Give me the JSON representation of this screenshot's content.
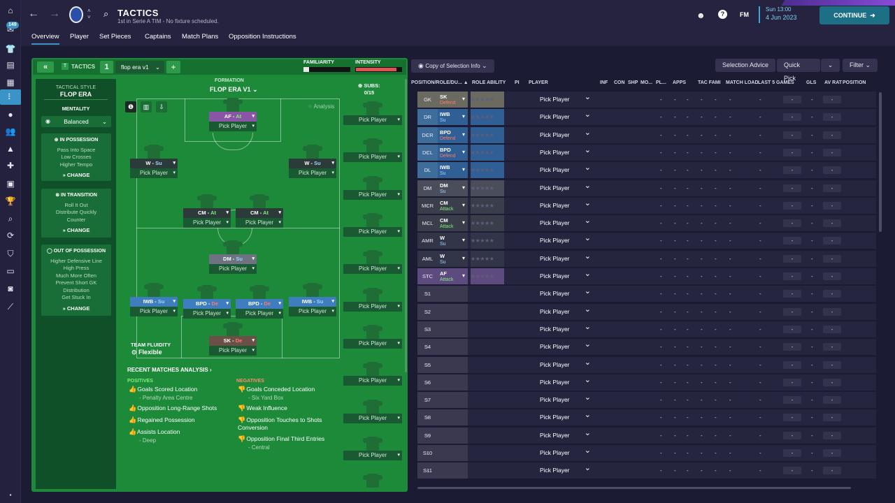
{
  "header": {
    "title": "TACTICS",
    "subtitle": "1st in Serie A TIM - No fixture scheduled.",
    "fm": "FM",
    "day_time": "Sun 13:00",
    "date": "4 Jun 2023",
    "continue": "CONTINUE",
    "inbox_count": "149"
  },
  "tabs": [
    "Overview",
    "Player",
    "Set Pieces",
    "Captains",
    "Match Plans",
    "Opposition Instructions"
  ],
  "tactics_bar": {
    "label": "TACTICS",
    "slot": "1",
    "name": "flop era v1",
    "familiarity": "FAMILIARITY",
    "intensity": "INTENSITY"
  },
  "left_panel": {
    "style_label": "TACTICAL STYLE",
    "style_value": "FLOP ERA",
    "mentality_label": "MENTALITY",
    "mentality_value": "Balanced",
    "possession": {
      "title": "IN POSSESSION",
      "items": [
        "Pass Into Space",
        "Low Crosses",
        "Higher Tempo"
      ],
      "change": "CHANGE"
    },
    "transition": {
      "title": "IN TRANSITION",
      "items": [
        "Roll It Out",
        "Distribute Quickly",
        "Counter"
      ],
      "change": "CHANGE"
    },
    "out": {
      "title": "OUT OF POSSESSION",
      "items": [
        "Higher Defensive Line",
        "High Press",
        "Much More Often",
        "Prevent Short GK",
        "Distribution",
        "Get Stuck In"
      ],
      "change": "CHANGE"
    }
  },
  "formation": {
    "label": "FORMATION",
    "name": "FLOP ERA V1",
    "subs_label": "SUBS:",
    "subs_count": "0/15",
    "analysis": "Analysis",
    "fluidity_label": "TEAM FLUIDITY",
    "fluidity_value": "Flexible",
    "pick": "Pick Player"
  },
  "pitch_slots": [
    {
      "role": "AF",
      "duty": "At",
      "duty_class": "at",
      "role_class": "r-purple"
    },
    {
      "role": "W",
      "duty": "Su",
      "duty_class": "su",
      "role_class": "r-dark"
    },
    {
      "role": "W",
      "duty": "Su",
      "duty_class": "su",
      "role_class": "r-dark"
    },
    {
      "role": "CM",
      "duty": "At",
      "duty_class": "at",
      "role_class": "r-dark"
    },
    {
      "role": "CM",
      "duty": "At",
      "duty_class": "at",
      "role_class": "r-dark"
    },
    {
      "role": "DM",
      "duty": "Su",
      "duty_class": "su",
      "role_class": "r-gray"
    },
    {
      "role": "IWB",
      "duty": "Su",
      "duty_class": "su",
      "role_class": "r-blue"
    },
    {
      "role": "BPD",
      "duty": "De",
      "duty_class": "de",
      "role_class": "r-blue"
    },
    {
      "role": "BPD",
      "duty": "De",
      "duty_class": "de",
      "role_class": "r-blue"
    },
    {
      "role": "IWB",
      "duty": "Su",
      "duty_class": "su",
      "role_class": "r-blue"
    },
    {
      "role": "SK",
      "duty": "De",
      "duty_class": "de",
      "role_class": "r-brown"
    }
  ],
  "analysis": {
    "title": "RECENT MATCHES ANALYSIS",
    "positives_label": "POSITIVES",
    "negatives_label": "NEGATIVES",
    "positives": [
      {
        "text": "Goals Scored Location",
        "sub": "- Penalty Area Centre"
      },
      {
        "text": "Opposition Long-Range Shots",
        "sub": ""
      },
      {
        "text": "Regained Possession",
        "sub": ""
      },
      {
        "text": "Assists Location",
        "sub": "- Deep"
      }
    ],
    "negatives": [
      {
        "text": "Goals Conceded Location",
        "sub": "- Six Yard Box"
      },
      {
        "text": "Weak Influence",
        "sub": ""
      },
      {
        "text": "Opposition Touches to Shots Conversion",
        "sub": ""
      },
      {
        "text": "Opposition Final Third Entries",
        "sub": "- Central"
      }
    ]
  },
  "toolbar": {
    "copy": "Copy of Selection Info",
    "advice": "Selection Advice",
    "quick": "Quick Pick",
    "filter": "Filter"
  },
  "columns": [
    "POSITION/ROLE/DU...",
    "ROLE ABILITY",
    "PI",
    "PLAYER",
    "INF",
    "CON",
    "SHP",
    "MO...",
    "PL...",
    "APPS",
    "TAC FAMI",
    "MATCH LOAD",
    "LAST 5 GAMES",
    "GLS",
    "AV RAT",
    "POSITION"
  ],
  "rows": [
    {
      "pos": "GK",
      "role": "SK",
      "duty": "Defend",
      "cls": "c-gk",
      "dcls": "de"
    },
    {
      "pos": "DR",
      "role": "IWB",
      "duty": "Su",
      "cls": "c-def",
      "dcls": "su"
    },
    {
      "pos": "DCR",
      "role": "BPD",
      "duty": "Defend",
      "cls": "c-def",
      "dcls": "de"
    },
    {
      "pos": "DCL",
      "role": "BPD",
      "duty": "Defend",
      "cls": "c-def",
      "dcls": "de"
    },
    {
      "pos": "DL",
      "role": "IWB",
      "duty": "Su",
      "cls": "c-def",
      "dcls": "su"
    },
    {
      "pos": "DM",
      "role": "DM",
      "duty": "Su",
      "cls": "c-dm",
      "dcls": "su"
    },
    {
      "pos": "MCR",
      "role": "CM",
      "duty": "Attack",
      "cls": "c-mid",
      "dcls": "at"
    },
    {
      "pos": "MCL",
      "role": "CM",
      "duty": "Attack",
      "cls": "c-mid",
      "dcls": "at"
    },
    {
      "pos": "AMR",
      "role": "W",
      "duty": "Su",
      "cls": "c-w",
      "dcls": "su"
    },
    {
      "pos": "AML",
      "role": "W",
      "duty": "Su",
      "cls": "c-w",
      "dcls": "su"
    },
    {
      "pos": "STC",
      "role": "AF",
      "duty": "Attack",
      "cls": "c-st",
      "dcls": "at"
    },
    {
      "pos": "S1",
      "role": "",
      "duty": "",
      "cls": "c-sub",
      "dcls": ""
    },
    {
      "pos": "S2",
      "role": "",
      "duty": "",
      "cls": "c-sub",
      "dcls": ""
    },
    {
      "pos": "S3",
      "role": "",
      "duty": "",
      "cls": "c-sub",
      "dcls": ""
    },
    {
      "pos": "S4",
      "role": "",
      "duty": "",
      "cls": "c-sub",
      "dcls": ""
    },
    {
      "pos": "S5",
      "role": "",
      "duty": "",
      "cls": "c-sub",
      "dcls": ""
    },
    {
      "pos": "S6",
      "role": "",
      "duty": "",
      "cls": "c-sub",
      "dcls": ""
    },
    {
      "pos": "S7",
      "role": "",
      "duty": "",
      "cls": "c-sub",
      "dcls": ""
    },
    {
      "pos": "S8",
      "role": "",
      "duty": "",
      "cls": "c-sub",
      "dcls": ""
    },
    {
      "pos": "S9",
      "role": "",
      "duty": "",
      "cls": "c-sub",
      "dcls": ""
    },
    {
      "pos": "S10",
      "role": "",
      "duty": "",
      "cls": "c-sub",
      "dcls": ""
    },
    {
      "pos": "S11",
      "role": "",
      "duty": "",
      "cls": "c-sub",
      "dcls": ""
    }
  ],
  "pick_player": "Pick Player",
  "dash": "-"
}
